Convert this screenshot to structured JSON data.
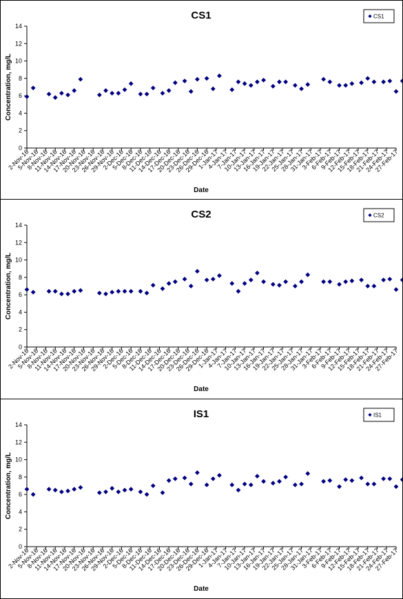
{
  "chart_data": [
    {
      "type": "scatter",
      "title": "CS1",
      "xlabel": "Date",
      "ylabel": "Concentration, mg/L",
      "ylim": [
        0,
        14
      ],
      "yticks": [
        0,
        2,
        4,
        6,
        8,
        10,
        12,
        14
      ],
      "grid": false,
      "legend_position": "top-right",
      "marker_color": "#000080",
      "series": [
        {
          "name": "CS1",
          "points": [
            [
              "2-Nov-16",
              5.9
            ],
            [
              "4-Nov-16",
              6.9
            ],
            [
              "9-Nov-16",
              6.2
            ],
            [
              "11-Nov-16",
              5.8
            ],
            [
              "13-Nov-16",
              6.3
            ],
            [
              "15-Nov-16",
              6.1
            ],
            [
              "17-Nov-16",
              6.6
            ],
            [
              "19-Nov-16",
              7.9
            ],
            [
              "25-Nov-16",
              6.1
            ],
            [
              "27-Nov-16",
              6.6
            ],
            [
              "29-Nov-16",
              6.3
            ],
            [
              "1-Dec-16",
              6.3
            ],
            [
              "3-Dec-16",
              6.7
            ],
            [
              "5-Dec-16",
              7.4
            ],
            [
              "8-Dec-16",
              6.2
            ],
            [
              "10-Dec-16",
              6.2
            ],
            [
              "12-Dec-16",
              6.9
            ],
            [
              "15-Dec-16",
              6.3
            ],
            [
              "17-Dec-16",
              6.6
            ],
            [
              "19-Dec-16",
              7.5
            ],
            [
              "22-Dec-16",
              7.7
            ],
            [
              "24-Dec-16",
              6.5
            ],
            [
              "26-Dec-16",
              7.9
            ],
            [
              "29-Dec-16",
              8.0
            ],
            [
              "31-Dec-16",
              6.8
            ],
            [
              "2-Jan-17",
              8.3
            ],
            [
              "6-Jan-17",
              6.7
            ],
            [
              "8-Jan-17",
              7.6
            ],
            [
              "10-Jan-17",
              7.4
            ],
            [
              "12-Jan-17",
              7.2
            ],
            [
              "14-Jan-17",
              7.6
            ],
            [
              "16-Jan-17",
              7.8
            ],
            [
              "19-Jan-17",
              7.1
            ],
            [
              "21-Jan-17",
              7.6
            ],
            [
              "23-Jan-17",
              7.6
            ],
            [
              "26-Jan-17",
              7.2
            ],
            [
              "28-Jan-17",
              6.8
            ],
            [
              "30-Jan-17",
              7.3
            ],
            [
              "4-Feb-17",
              7.9
            ],
            [
              "6-Feb-17",
              7.6
            ],
            [
              "9-Feb-17",
              7.2
            ],
            [
              "11-Feb-17",
              7.2
            ],
            [
              "13-Feb-17",
              7.4
            ],
            [
              "16-Feb-17",
              7.5
            ],
            [
              "18-Feb-17",
              8.0
            ],
            [
              "20-Feb-17",
              7.6
            ],
            [
              "23-Feb-17",
              7.6
            ],
            [
              "25-Feb-17",
              7.7
            ],
            [
              "27-Feb-17",
              6.5
            ],
            [
              "1-Mar-17",
              7.7
            ]
          ]
        }
      ]
    },
    {
      "type": "scatter",
      "title": "CS2",
      "xlabel": "Date",
      "ylabel": "Concentration, mg/L",
      "ylim": [
        0,
        14
      ],
      "yticks": [
        0,
        2,
        4,
        6,
        8,
        10,
        12,
        14
      ],
      "grid": false,
      "legend_position": "top-right",
      "marker_color": "#000080",
      "series": [
        {
          "name": "CS2",
          "points": [
            [
              "2-Nov-16",
              6.6
            ],
            [
              "4-Nov-16",
              6.3
            ],
            [
              "9-Nov-16",
              6.4
            ],
            [
              "11-Nov-16",
              6.4
            ],
            [
              "13-Nov-16",
              6.1
            ],
            [
              "15-Nov-16",
              6.1
            ],
            [
              "17-Nov-16",
              6.4
            ],
            [
              "19-Nov-16",
              6.5
            ],
            [
              "25-Nov-16",
              6.2
            ],
            [
              "27-Nov-16",
              6.1
            ],
            [
              "29-Nov-16",
              6.3
            ],
            [
              "1-Dec-16",
              6.4
            ],
            [
              "3-Dec-16",
              6.4
            ],
            [
              "5-Dec-16",
              6.4
            ],
            [
              "8-Dec-16",
              6.4
            ],
            [
              "10-Dec-16",
              6.2
            ],
            [
              "12-Dec-16",
              7.1
            ],
            [
              "15-Dec-16",
              6.7
            ],
            [
              "17-Dec-16",
              7.3
            ],
            [
              "19-Dec-16",
              7.5
            ],
            [
              "22-Dec-16",
              7.8
            ],
            [
              "24-Dec-16",
              7.0
            ],
            [
              "26-Dec-16",
              8.7
            ],
            [
              "29-Dec-16",
              7.7
            ],
            [
              "31-Dec-16",
              7.8
            ],
            [
              "2-Jan-17",
              8.2
            ],
            [
              "6-Jan-17",
              7.3
            ],
            [
              "8-Jan-17",
              6.4
            ],
            [
              "10-Jan-17",
              7.3
            ],
            [
              "12-Jan-17",
              7.7
            ],
            [
              "14-Jan-17",
              8.5
            ],
            [
              "16-Jan-17",
              7.5
            ],
            [
              "19-Jan-17",
              7.2
            ],
            [
              "21-Jan-17",
              7.1
            ],
            [
              "23-Jan-17",
              7.5
            ],
            [
              "26-Jan-17",
              7.0
            ],
            [
              "28-Jan-17",
              7.5
            ],
            [
              "30-Jan-17",
              8.3
            ],
            [
              "4-Feb-17",
              7.5
            ],
            [
              "6-Feb-17",
              7.5
            ],
            [
              "9-Feb-17",
              7.2
            ],
            [
              "11-Feb-17",
              7.5
            ],
            [
              "13-Feb-17",
              7.6
            ],
            [
              "16-Feb-17",
              7.7
            ],
            [
              "18-Feb-17",
              7.0
            ],
            [
              "20-Feb-17",
              7.0
            ],
            [
              "23-Feb-17",
              7.7
            ],
            [
              "25-Feb-17",
              7.8
            ],
            [
              "27-Feb-17",
              6.6
            ],
            [
              "1-Mar-17",
              7.7
            ]
          ]
        }
      ]
    },
    {
      "type": "scatter",
      "title": "IS1",
      "xlabel": "Date",
      "ylabel": "Concentration, mg/L",
      "ylim": [
        0,
        14
      ],
      "yticks": [
        0,
        2,
        4,
        6,
        8,
        10,
        12,
        14
      ],
      "grid": false,
      "legend_position": "top-right",
      "marker_color": "#000080",
      "series": [
        {
          "name": "IS1",
          "points": [
            [
              "2-Nov-16",
              6.6
            ],
            [
              "4-Nov-16",
              6.0
            ],
            [
              "9-Nov-16",
              6.6
            ],
            [
              "11-Nov-16",
              6.5
            ],
            [
              "13-Nov-16",
              6.3
            ],
            [
              "15-Nov-16",
              6.4
            ],
            [
              "17-Nov-16",
              6.6
            ],
            [
              "19-Nov-16",
              6.8
            ],
            [
              "25-Nov-16",
              6.2
            ],
            [
              "27-Nov-16",
              6.3
            ],
            [
              "29-Nov-16",
              6.7
            ],
            [
              "1-Dec-16",
              6.3
            ],
            [
              "3-Dec-16",
              6.5
            ],
            [
              "5-Dec-16",
              6.6
            ],
            [
              "8-Dec-16",
              6.3
            ],
            [
              "10-Dec-16",
              6.0
            ],
            [
              "12-Dec-16",
              7.0
            ],
            [
              "15-Dec-16",
              6.2
            ],
            [
              "17-Dec-16",
              7.6
            ],
            [
              "19-Dec-16",
              7.8
            ],
            [
              "22-Dec-16",
              7.9
            ],
            [
              "24-Dec-16",
              7.2
            ],
            [
              "26-Dec-16",
              8.5
            ],
            [
              "29-Dec-16",
              7.1
            ],
            [
              "31-Dec-16",
              7.8
            ],
            [
              "2-Jan-17",
              8.2
            ],
            [
              "6-Jan-17",
              7.1
            ],
            [
              "8-Jan-17",
              6.5
            ],
            [
              "10-Jan-17",
              7.2
            ],
            [
              "12-Jan-17",
              7.1
            ],
            [
              "14-Jan-17",
              8.1
            ],
            [
              "16-Jan-17",
              7.5
            ],
            [
              "19-Jan-17",
              7.3
            ],
            [
              "21-Jan-17",
              7.5
            ],
            [
              "23-Jan-17",
              8.0
            ],
            [
              "26-Jan-17",
              7.1
            ],
            [
              "28-Jan-17",
              7.2
            ],
            [
              "30-Jan-17",
              8.4
            ],
            [
              "4-Feb-17",
              7.5
            ],
            [
              "6-Feb-17",
              7.6
            ],
            [
              "9-Feb-17",
              6.9
            ],
            [
              "11-Feb-17",
              7.7
            ],
            [
              "13-Feb-17",
              7.6
            ],
            [
              "16-Feb-17",
              7.9
            ],
            [
              "18-Feb-17",
              7.2
            ],
            [
              "20-Feb-17",
              7.2
            ],
            [
              "23-Feb-17",
              7.8
            ],
            [
              "25-Feb-17",
              7.8
            ],
            [
              "27-Feb-17",
              6.9
            ],
            [
              "1-Mar-17",
              7.7
            ]
          ]
        }
      ]
    }
  ],
  "x_axis": {
    "start": "2-Nov-16",
    "end": "27-Feb-17",
    "ticks": [
      "2-Nov-16",
      "5-Nov-16",
      "8-Nov-16",
      "11-Nov-16",
      "14-Nov-16",
      "17-Nov-16",
      "20-Nov-16",
      "23-Nov-16",
      "26-Nov-16",
      "29-Nov-16",
      "2-Dec-16",
      "5-Dec-16",
      "8-Dec-16",
      "11-Dec-16",
      "14-Dec-16",
      "17-Dec-16",
      "20-Dec-16",
      "23-Dec-16",
      "26-Dec-16",
      "29-Dec-16",
      "1-Jan-17",
      "4-Jan-17",
      "7-Jan-17",
      "10-Jan-17",
      "13-Jan-17",
      "16-Jan-17",
      "19-Jan-17",
      "22-Jan-17",
      "25-Jan-17",
      "28-Jan-17",
      "31-Jan-17",
      "3-Feb-17",
      "6-Feb-17",
      "9-Feb-17",
      "12-Feb-17",
      "15-Feb-17",
      "18-Feb-17",
      "21-Feb-17",
      "24-Feb-17",
      "27-Feb-17"
    ]
  }
}
